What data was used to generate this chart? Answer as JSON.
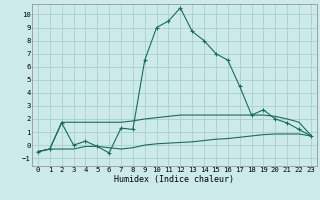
{
  "xlabel": "Humidex (Indice chaleur)",
  "bg_color": "#cceaea",
  "grid_color": "#aacfcf",
  "line_color": "#1a6b5a",
  "xlim": [
    -0.5,
    23.5
  ],
  "ylim": [
    -1.6,
    10.8
  ],
  "xticks": [
    0,
    1,
    2,
    3,
    4,
    5,
    6,
    7,
    8,
    9,
    10,
    11,
    12,
    13,
    14,
    15,
    16,
    17,
    18,
    19,
    20,
    21,
    22,
    23
  ],
  "yticks": [
    -1,
    0,
    1,
    2,
    3,
    4,
    5,
    6,
    7,
    8,
    9,
    10
  ],
  "line1_x": [
    0,
    1,
    2,
    3,
    4,
    5,
    6,
    7,
    8,
    9,
    10,
    11,
    12,
    13,
    14,
    15,
    16,
    17,
    18,
    19,
    20,
    21,
    22,
    23
  ],
  "line1_y": [
    -0.5,
    -0.3,
    1.7,
    0.0,
    0.3,
    -0.1,
    -0.6,
    1.3,
    1.2,
    6.5,
    9.0,
    9.5,
    10.5,
    8.7,
    8.0,
    7.0,
    6.5,
    4.5,
    2.3,
    2.7,
    2.0,
    1.7,
    1.2,
    0.7
  ],
  "line2_x": [
    0,
    1,
    2,
    3,
    4,
    5,
    6,
    7,
    8,
    9,
    10,
    11,
    12,
    13,
    14,
    15,
    16,
    17,
    18,
    19,
    20,
    21,
    22,
    23
  ],
  "line2_y": [
    -0.5,
    -0.3,
    1.75,
    1.75,
    1.75,
    1.75,
    1.75,
    1.75,
    1.85,
    2.0,
    2.1,
    2.2,
    2.3,
    2.3,
    2.3,
    2.3,
    2.3,
    2.3,
    2.3,
    2.3,
    2.2,
    2.0,
    1.75,
    0.75
  ],
  "line3_x": [
    0,
    1,
    2,
    3,
    4,
    5,
    6,
    7,
    8,
    9,
    10,
    11,
    12,
    13,
    14,
    15,
    16,
    17,
    18,
    19,
    20,
    21,
    22,
    23
  ],
  "line3_y": [
    -0.5,
    -0.3,
    -0.3,
    -0.3,
    -0.1,
    -0.1,
    -0.2,
    -0.3,
    -0.2,
    0.0,
    0.1,
    0.15,
    0.2,
    0.25,
    0.35,
    0.45,
    0.5,
    0.6,
    0.7,
    0.8,
    0.85,
    0.85,
    0.85,
    0.7
  ],
  "tick_fontsize": 5.2,
  "xlabel_fontsize": 6.0,
  "marker_size": 2.5,
  "line_width": 0.8
}
